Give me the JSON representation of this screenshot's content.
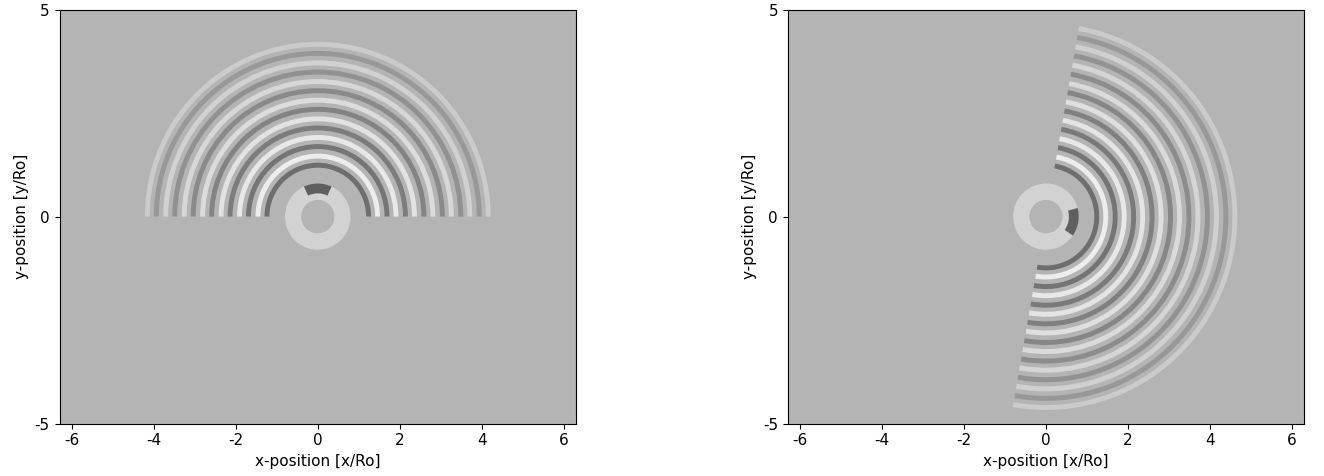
{
  "chart_data": [
    {
      "type": "field",
      "xlabel": "x-position [x/Ro]",
      "ylabel": "y-position [y/Ro]",
      "xlim": [
        -6.3,
        6.3
      ],
      "ylim": [
        -5,
        5
      ],
      "xticks": [
        -6,
        -4,
        -2,
        0,
        2,
        4,
        6
      ],
      "yticks": [
        -5,
        0,
        5
      ],
      "source": {
        "inner_radius": 0.4,
        "outer_radius": 0.8,
        "active_sector": [
          65,
          115
        ]
      },
      "wavefronts": {
        "sector": [
          0,
          180
        ],
        "radii": [
          1.3,
          1.75,
          2.2,
          2.65,
          3.1,
          3.55,
          4.0
        ]
      }
    },
    {
      "type": "field",
      "xlabel": "x-position [x/Ro]",
      "ylabel": "y-position [y/Ro]",
      "xlim": [
        -6.3,
        6.3
      ],
      "ylim": [
        -5,
        5
      ],
      "xticks": [
        -6,
        -4,
        -2,
        0,
        2,
        4,
        6
      ],
      "yticks": [
        -5,
        0,
        5
      ],
      "source": {
        "inner_radius": 0.4,
        "outer_radius": 0.8,
        "active_sector": [
          -35,
          15
        ]
      },
      "wavefronts": {
        "sector": [
          -100,
          80
        ],
        "radii": [
          1.3,
          1.75,
          2.2,
          2.65,
          3.1,
          3.55,
          4.0,
          4.45
        ]
      }
    }
  ]
}
